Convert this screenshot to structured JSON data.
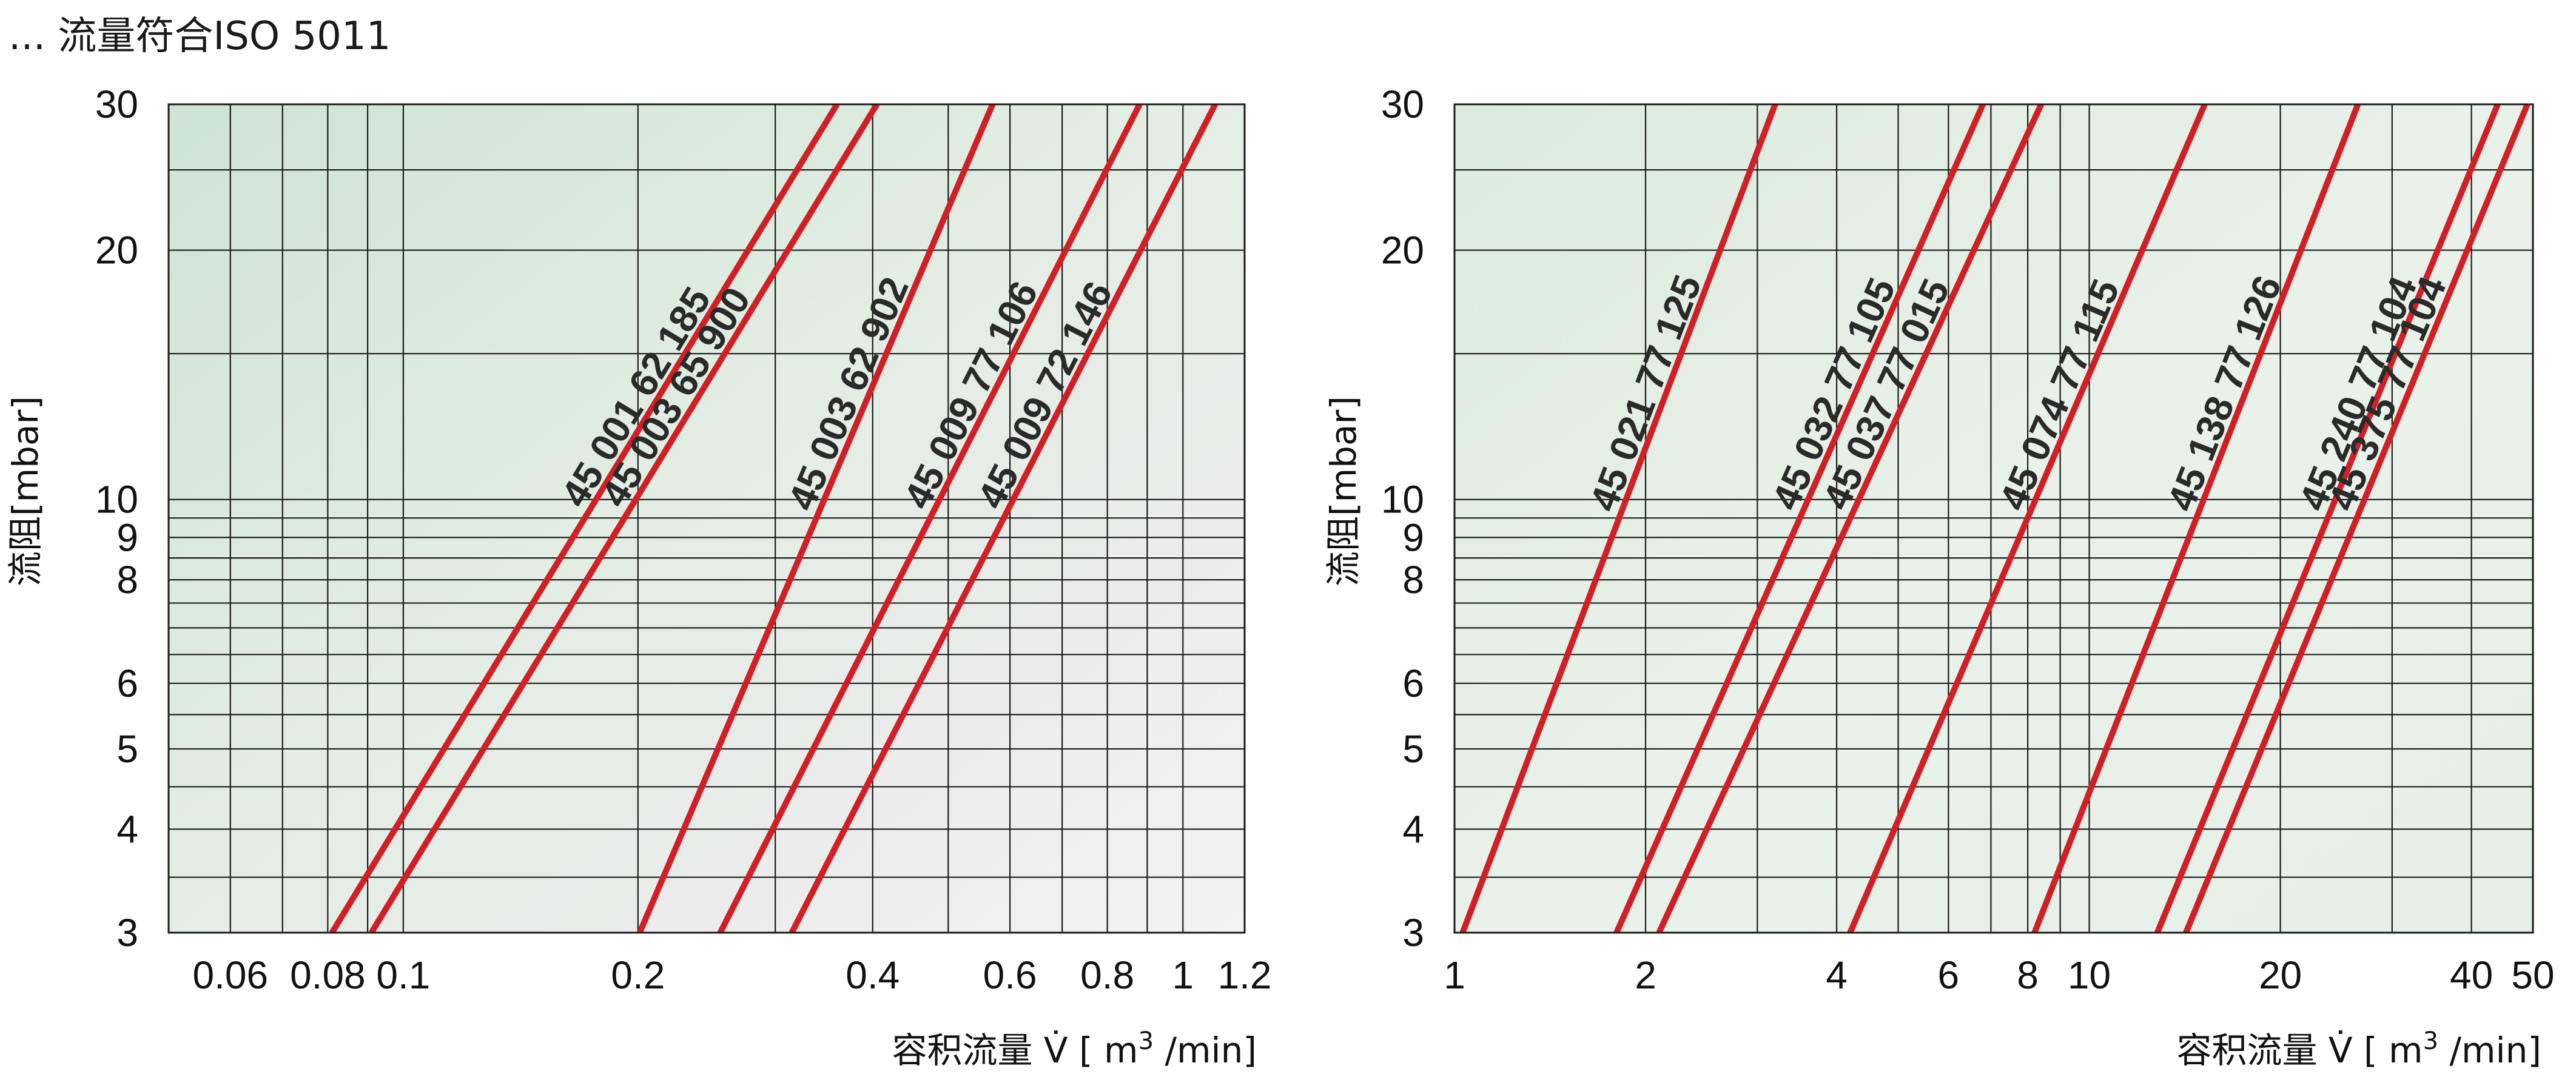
{
  "page_title": "... 流量符合ISO 5011",
  "colors": {
    "curve": "#d11f26",
    "grid": "#1c1c1c"
  },
  "chart_data": [
    {
      "type": "line",
      "x_scale": "log",
      "y_scale": "log",
      "xlim": [
        0.05,
        1.2
      ],
      "ylim": [
        3,
        30
      ],
      "xlabel_prefix": "容积流量 V̇ [ m",
      "xlabel_sup": "3",
      "xlabel_suffix": " /min]",
      "ylabel": "流阻[mbar]",
      "x_ticks": [
        {
          "v": 0.06,
          "label": "0.06"
        },
        {
          "v": 0.08,
          "label": "0.08"
        },
        {
          "v": 0.1,
          "label": "0.1"
        },
        {
          "v": 0.2,
          "label": "0.2"
        },
        {
          "v": 0.4,
          "label": "0.4"
        },
        {
          "v": 0.6,
          "label": "0.6"
        },
        {
          "v": 0.8,
          "label": "0.8"
        },
        {
          "v": 1,
          "label": "1"
        },
        {
          "v": 1.2,
          "label": "1.2"
        }
      ],
      "x_grid": [
        0.06,
        0.07,
        0.08,
        0.09,
        0.1,
        0.2,
        0.3,
        0.4,
        0.5,
        0.6,
        0.7,
        0.8,
        0.9,
        1
      ],
      "y_ticks": [
        {
          "v": 3,
          "label": "3"
        },
        {
          "v": 4,
          "label": "4"
        },
        {
          "v": 5,
          "label": "5"
        },
        {
          "v": 6,
          "label": "6"
        },
        {
          "v": 8,
          "label": "8"
        },
        {
          "v": 9,
          "label": "9"
        },
        {
          "v": 10,
          "label": "10"
        },
        {
          "v": 20,
          "label": "20"
        },
        {
          "v": 30,
          "label": "30"
        }
      ],
      "y_grid": [
        3,
        3.5,
        4,
        4.5,
        5,
        5.5,
        6,
        6.5,
        7,
        7.5,
        8,
        8.5,
        9,
        9.5,
        10,
        15,
        20,
        25,
        30
      ],
      "label_y": 10.5,
      "series": [
        {
          "name": "45 001 62 185",
          "points": [
            [
              0.081,
              3
            ],
            [
              0.36,
              30
            ]
          ]
        },
        {
          "name": "45 003 65 900",
          "points": [
            [
              0.091,
              3
            ],
            [
              0.405,
              30
            ]
          ]
        },
        {
          "name": "45 003 62 902",
          "points": [
            [
              0.201,
              3
            ],
            [
              0.57,
              30
            ]
          ]
        },
        {
          "name": "45 009 77 106",
          "points": [
            [
              0.255,
              3
            ],
            [
              0.88,
              30
            ]
          ]
        },
        {
          "name": "45 009 72 146",
          "points": [
            [
              0.315,
              3
            ],
            [
              1.1,
              30
            ]
          ]
        }
      ]
    },
    {
      "type": "line",
      "x_scale": "log",
      "y_scale": "log",
      "xlim": [
        1,
        50
      ],
      "ylim": [
        3,
        30
      ],
      "xlabel_prefix": "容积流量 V̇ [ m",
      "xlabel_sup": "3",
      "xlabel_suffix": " /min]",
      "ylabel": "流阻[mbar]",
      "x_ticks": [
        {
          "v": 1,
          "label": "1"
        },
        {
          "v": 2,
          "label": "2"
        },
        {
          "v": 4,
          "label": "4"
        },
        {
          "v": 6,
          "label": "6"
        },
        {
          "v": 8,
          "label": "8"
        },
        {
          "v": 10,
          "label": "10"
        },
        {
          "v": 20,
          "label": "20"
        },
        {
          "v": 40,
          "label": "40"
        },
        {
          "v": 50,
          "label": "50"
        }
      ],
      "x_grid": [
        2,
        3,
        4,
        5,
        6,
        7,
        8,
        9,
        10,
        20,
        30,
        40
      ],
      "y_ticks": [
        {
          "v": 3,
          "label": "3"
        },
        {
          "v": 4,
          "label": "4"
        },
        {
          "v": 5,
          "label": "5"
        },
        {
          "v": 6,
          "label": "6"
        },
        {
          "v": 8,
          "label": "8"
        },
        {
          "v": 9,
          "label": "9"
        },
        {
          "v": 10,
          "label": "10"
        },
        {
          "v": 20,
          "label": "20"
        },
        {
          "v": 30,
          "label": "30"
        }
      ],
      "y_grid": [
        3,
        3.5,
        4,
        4.5,
        5,
        5.5,
        6,
        6.5,
        7,
        7.5,
        8,
        8.5,
        9,
        9.5,
        10,
        15,
        20,
        25,
        30
      ],
      "label_y": 10.5,
      "series": [
        {
          "name": "45 021 77 125",
          "points": [
            [
              1.03,
              3
            ],
            [
              3.2,
              30
            ]
          ]
        },
        {
          "name": "45 032 77 105",
          "points": [
            [
              1.8,
              3
            ],
            [
              6.8,
              30
            ]
          ]
        },
        {
          "name": "45 037 77 015",
          "points": [
            [
              2.1,
              3
            ],
            [
              8.4,
              30
            ]
          ]
        },
        {
          "name": "45 074 77 115",
          "points": [
            [
              4.2,
              3
            ],
            [
              15.2,
              30
            ]
          ]
        },
        {
          "name": "45 138 77 126",
          "points": [
            [
              8.2,
              3
            ],
            [
              26.5,
              30
            ]
          ]
        },
        {
          "name": "45 240 77 104",
          "points": [
            [
              12.8,
              3
            ],
            [
              44,
              30
            ]
          ]
        },
        {
          "name": "45 375 77 104",
          "points": [
            [
              14.2,
              3
            ],
            [
              49,
              30
            ]
          ]
        }
      ]
    }
  ]
}
